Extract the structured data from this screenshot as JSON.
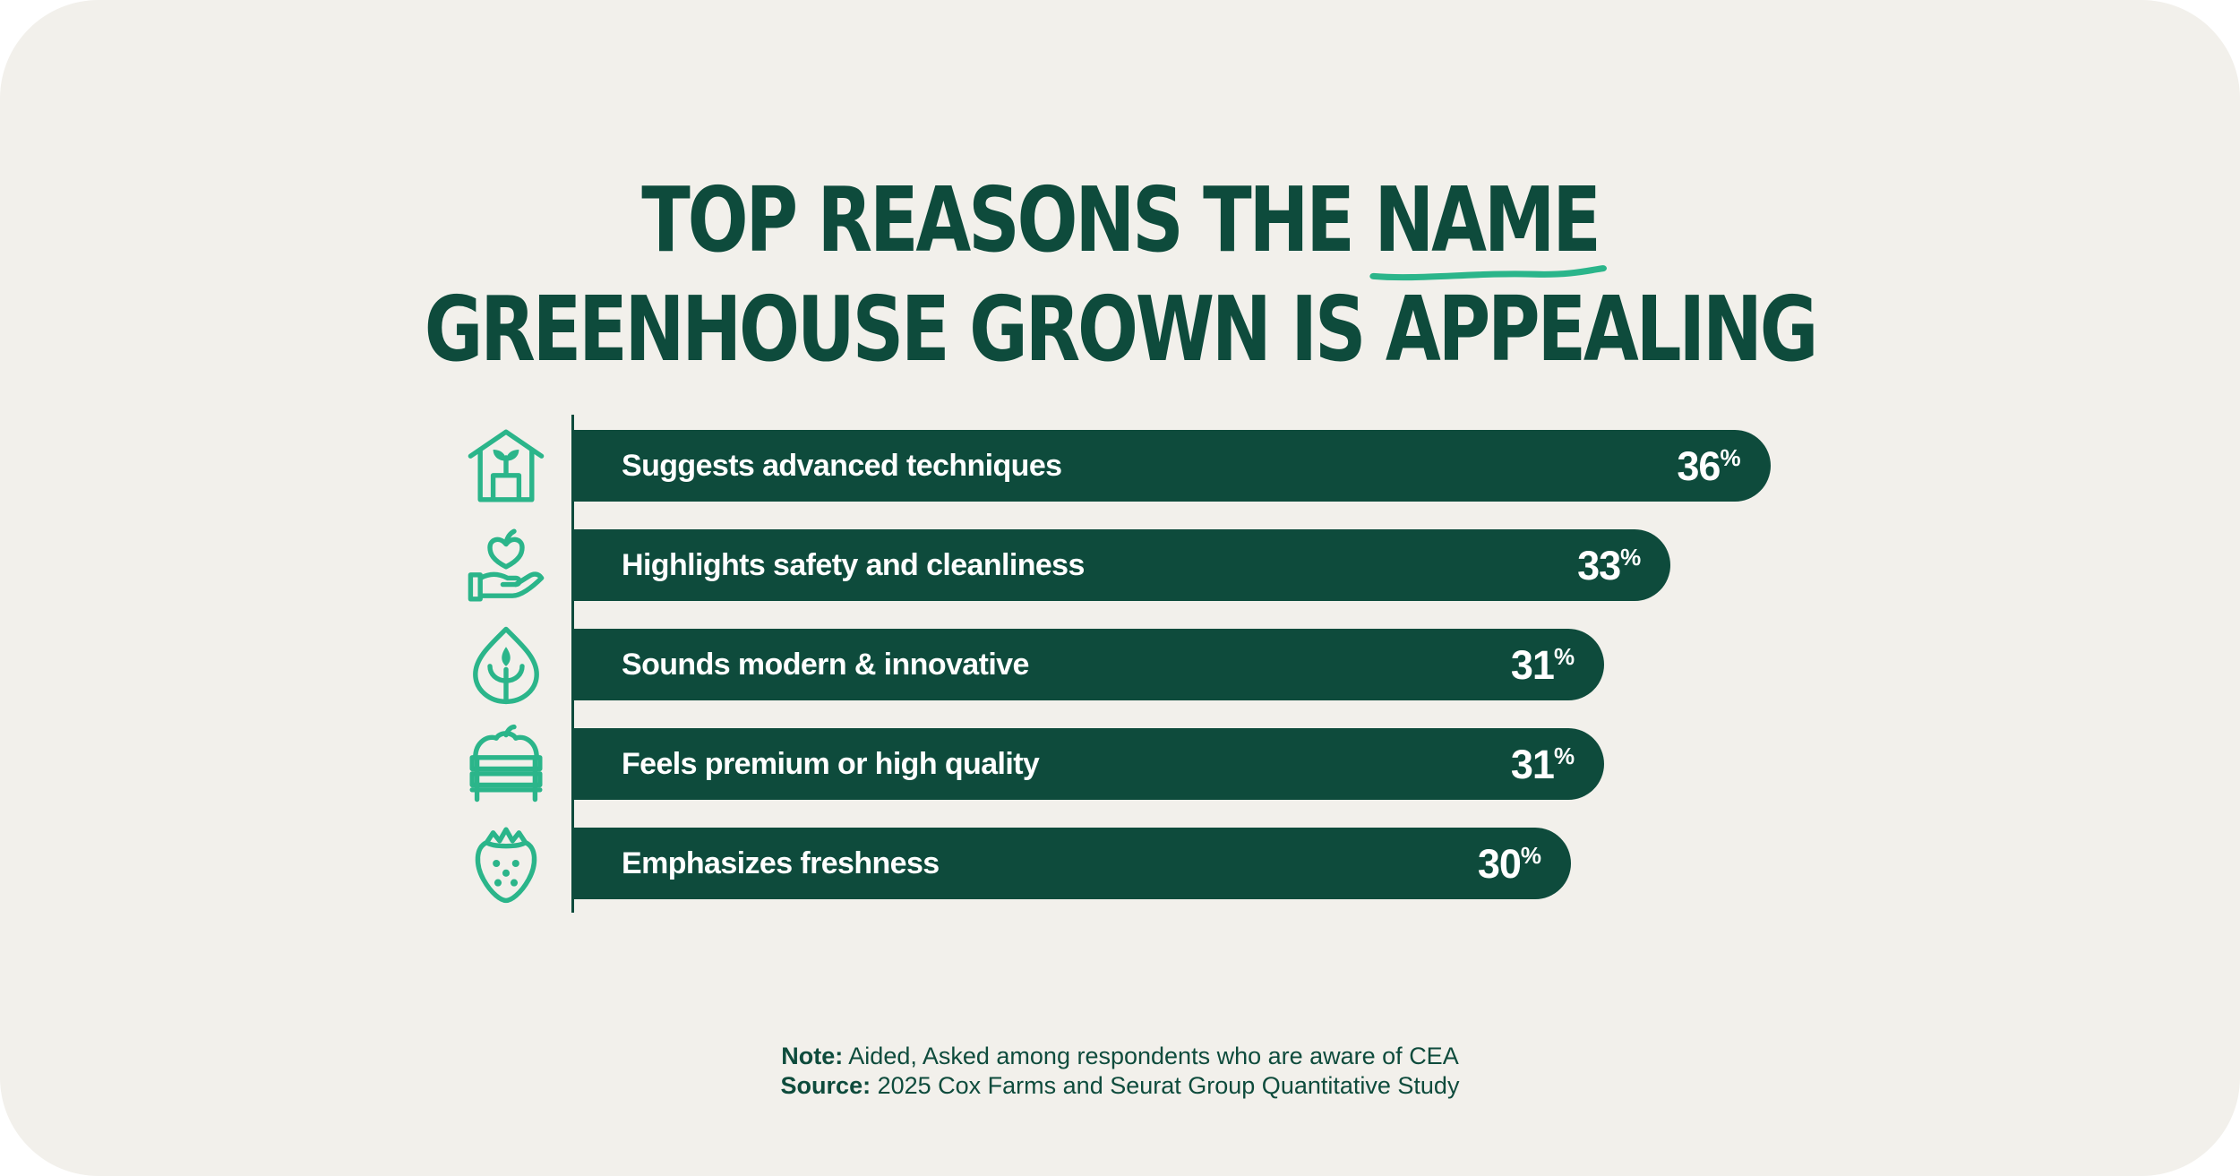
{
  "title": {
    "before": "TOP REASONS THE",
    "highlight": "NAME",
    "line2": "GREENHOUSE GROWN IS APPEALING"
  },
  "colors": {
    "background": "#f2f0eb",
    "bar": "#0e4b3c",
    "accent": "#2bb58a",
    "text_dark": "#0e4b3c"
  },
  "chart_data": {
    "type": "bar",
    "orientation": "horizontal",
    "title": "TOP REASONS THE NAME GREENHOUSE GROWN IS APPEALING",
    "categories": [
      "Suggests advanced techniques",
      "Highlights safety and cleanliness",
      "Sounds modern & innovative",
      "Feels premium or high quality",
      "Emphasizes freshness"
    ],
    "values": [
      36,
      33,
      31,
      31,
      30
    ],
    "value_labels": [
      "36",
      "33",
      "31",
      "31",
      "30"
    ],
    "unit": "%",
    "icons": [
      "greenhouse-icon",
      "hand-heart-apple-icon",
      "leaf-drop-icon",
      "produce-crate-icon",
      "strawberry-icon"
    ],
    "grid": false,
    "legend": "none"
  },
  "notes": {
    "note_label": "Note:",
    "note_text": "Aided, Asked among respondents who are aware of CEA",
    "source_label": "Source:",
    "source_text": "2025 Cox Farms and Seurat Group Quantitative Study"
  }
}
